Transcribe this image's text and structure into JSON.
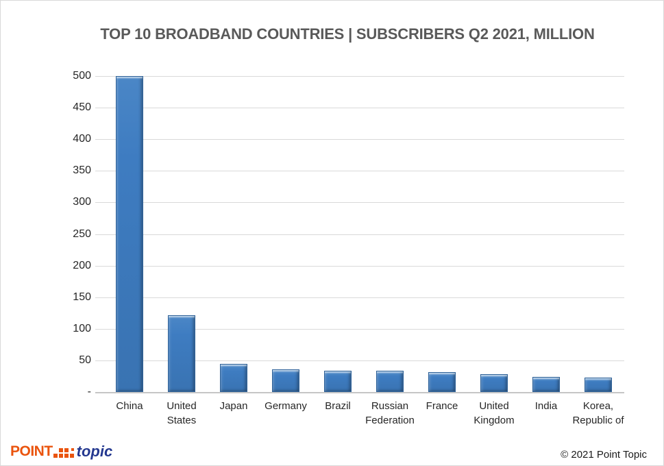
{
  "title": "TOP 10 BROADBAND COUNTRIES | SUBSCRIBERS Q2 2021, MILLION",
  "chart_data": {
    "type": "bar",
    "title": "TOP 10 BROADBAND COUNTRIES | SUBSCRIBERS Q2 2021, MILLION",
    "categories": [
      "China",
      "United\nStates",
      "Japan",
      "Germany",
      "Brazil",
      "Russian\nFederation",
      "France",
      "United\nKingdom",
      "India",
      "Korea,\nRepublic of"
    ],
    "values": [
      500,
      121,
      44,
      36,
      34,
      34,
      31,
      28,
      24,
      23
    ],
    "xlabel": "",
    "ylabel": "",
    "ylim": [
      0,
      500
    ],
    "ytick_interval": 50,
    "ytick_labels": [
      "500",
      "450",
      "400",
      "350",
      "300",
      "250",
      "200",
      "150",
      "100",
      "50",
      "-"
    ],
    "grid": "horizontal",
    "legend": "none",
    "bar_color": "#3e7cc1",
    "bar_border_color": "#2b5f97",
    "gridline_color": "#d9d9d9",
    "axis_color": "#c6c6c6",
    "label_color": "#262626",
    "title_color": "#595959"
  },
  "footer": {
    "logo_point": "POINT",
    "logo_topic": "topic",
    "copyright": "© 2021  Point Topic"
  }
}
